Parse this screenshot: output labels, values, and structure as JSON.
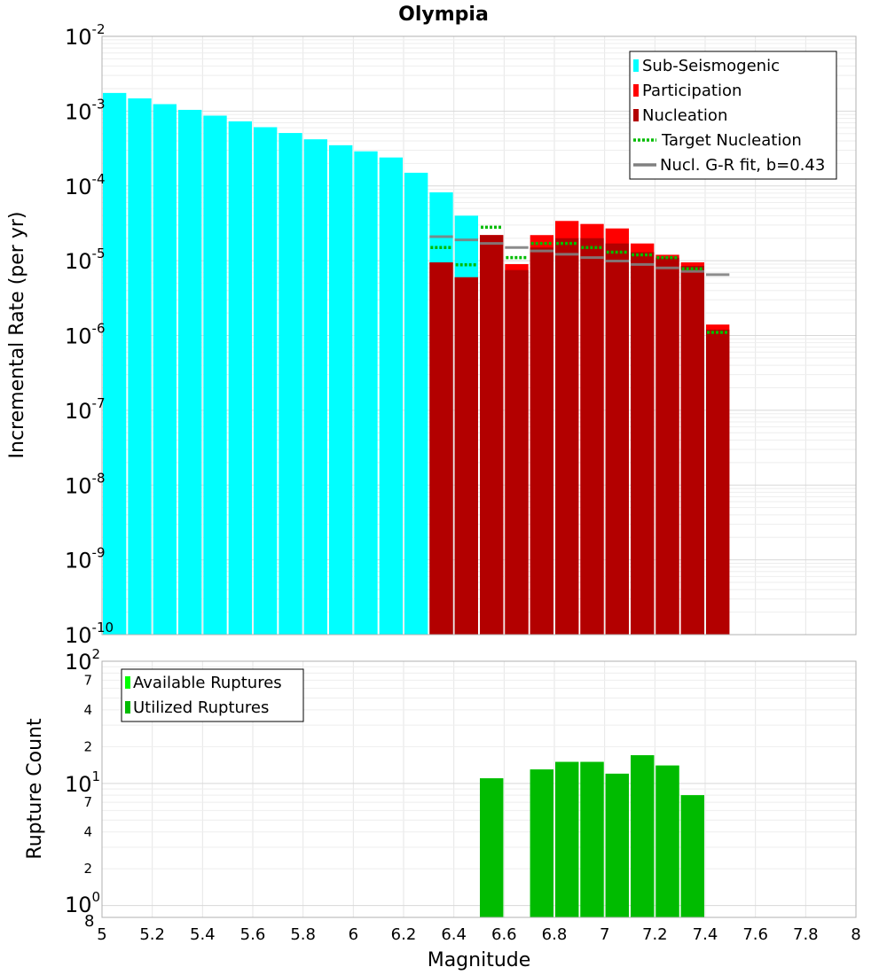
{
  "chart_data": [
    {
      "type": "bar",
      "title": "Olympia",
      "xlabel": "",
      "ylabel": "Incremental Rate (per yr)",
      "xlim": [
        5,
        8
      ],
      "ylim": [
        1e-10,
        0.01
      ],
      "yscale": "log",
      "grid": true,
      "legend_position": "top-right",
      "bin_width": 0.1,
      "y_tick_labels": [
        {
          "base": "10",
          "exp": "-10"
        },
        {
          "base": "10",
          "exp": "-9"
        },
        {
          "base": "10",
          "exp": "-8"
        },
        {
          "base": "10",
          "exp": "-7"
        },
        {
          "base": "10",
          "exp": "-6"
        },
        {
          "base": "10",
          "exp": "-5"
        },
        {
          "base": "10",
          "exp": "-4"
        },
        {
          "base": "10",
          "exp": "-3"
        },
        {
          "base": "10",
          "exp": "-2"
        }
      ],
      "series": [
        {
          "name": "Sub-Seismogenic",
          "color": "#00ffff",
          "x": [
            5.05,
            5.15,
            5.25,
            5.35,
            5.45,
            5.55,
            5.65,
            5.75,
            5.85,
            5.95,
            6.05,
            6.15,
            6.25,
            6.35,
            6.45
          ],
          "values": [
            0.00175,
            0.00148,
            0.00124,
            0.00104,
            0.00087,
            0.00073,
            0.00061,
            0.00051,
            0.00042,
            0.00035,
            0.00029,
            0.00024,
            0.00015,
            8.2e-05,
            4e-05
          ]
        },
        {
          "name": "Participation",
          "color": "#ff0000",
          "x": [
            6.35,
            6.45,
            6.55,
            6.65,
            6.75,
            6.85,
            6.95,
            7.05,
            7.15,
            7.25,
            7.35,
            7.45
          ],
          "values": [
            9.5e-06,
            6e-06,
            2.2e-05,
            9e-06,
            2.2e-05,
            3.4e-05,
            3.1e-05,
            2.7e-05,
            1.7e-05,
            1.2e-05,
            9.5e-06,
            1.4e-06
          ]
        },
        {
          "name": "Nucleation",
          "color": "#b30000",
          "x": [
            6.35,
            6.45,
            6.55,
            6.65,
            6.75,
            6.85,
            6.95,
            7.05,
            7.15,
            7.25,
            7.35,
            7.45
          ],
          "values": [
            9.5e-06,
            6e-06,
            2.2e-05,
            7.5e-06,
            1.5e-05,
            2e-05,
            2e-05,
            1.7e-05,
            1.3e-05,
            1.1e-05,
            8.5e-06,
            1.2e-06
          ]
        },
        {
          "name": "Target Nucleation",
          "color": "#00bb00",
          "style": "dotted",
          "x": [
            6.35,
            6.45,
            6.55,
            6.65,
            6.75,
            6.85,
            6.95,
            7.05,
            7.15,
            7.25,
            7.35,
            7.45
          ],
          "values": [
            1.5e-05,
            8.8e-06,
            2.8e-05,
            1.1e-05,
            1.7e-05,
            1.7e-05,
            1.5e-05,
            1.3e-05,
            1.2e-05,
            1.1e-05,
            7.8e-06,
            1.1e-06
          ]
        },
        {
          "name": "Nucl. G-R fit, b=0.43",
          "color": "#808080",
          "style": "solid",
          "x": [
            6.35,
            6.45,
            6.55,
            6.65,
            6.75,
            6.85,
            6.95,
            7.05,
            7.15,
            7.25,
            7.35,
            7.45
          ],
          "values": [
            2.1e-05,
            1.9e-05,
            1.7e-05,
            1.5e-05,
            1.35e-05,
            1.22e-05,
            1.1e-05,
            9.9e-06,
            8.9e-06,
            8e-06,
            7.2e-06,
            6.5e-06
          ]
        }
      ]
    },
    {
      "type": "bar",
      "title": "",
      "xlabel": "Magnitude",
      "ylabel": "Rupture Count",
      "xlim": [
        5,
        8
      ],
      "ylim": [
        0.8,
        100
      ],
      "yscale": "log",
      "grid": true,
      "legend_position": "top-left",
      "bin_width": 0.1,
      "x_tick_labels": [
        "5",
        "5.2",
        "5.4",
        "5.6",
        "5.8",
        "6",
        "6.2",
        "6.4",
        "6.6",
        "6.8",
        "7",
        "7.2",
        "7.4",
        "7.6",
        "7.8",
        "8"
      ],
      "y_major_tick_labels": [
        {
          "base": "10",
          "exp": "0",
          "suffix": "8"
        },
        {
          "base": "10",
          "exp": "1"
        },
        {
          "base": "10",
          "exp": "2"
        }
      ],
      "y_minor_tick_labels": [
        {
          "label": "2",
          "value": 2
        },
        {
          "label": "4",
          "value": 4
        },
        {
          "label": "7",
          "value": 7
        },
        {
          "label": "2",
          "value": 20
        },
        {
          "label": "4",
          "value": 40
        },
        {
          "label": "7",
          "value": 70
        }
      ],
      "series": [
        {
          "name": "Available Ruptures",
          "color": "#00ff00",
          "x": [
            6.55,
            6.75,
            6.85,
            6.95,
            7.05,
            7.15,
            7.25,
            7.35
          ],
          "values": [
            11,
            13,
            15,
            15,
            12,
            17,
            14,
            8
          ]
        },
        {
          "name": "Utilized Ruptures",
          "color": "#00bb00",
          "x": [
            6.55,
            6.75,
            6.85,
            6.95,
            7.05,
            7.15,
            7.25,
            7.35
          ],
          "values": [
            11,
            13,
            15,
            15,
            12,
            17,
            14,
            8
          ]
        }
      ]
    }
  ]
}
